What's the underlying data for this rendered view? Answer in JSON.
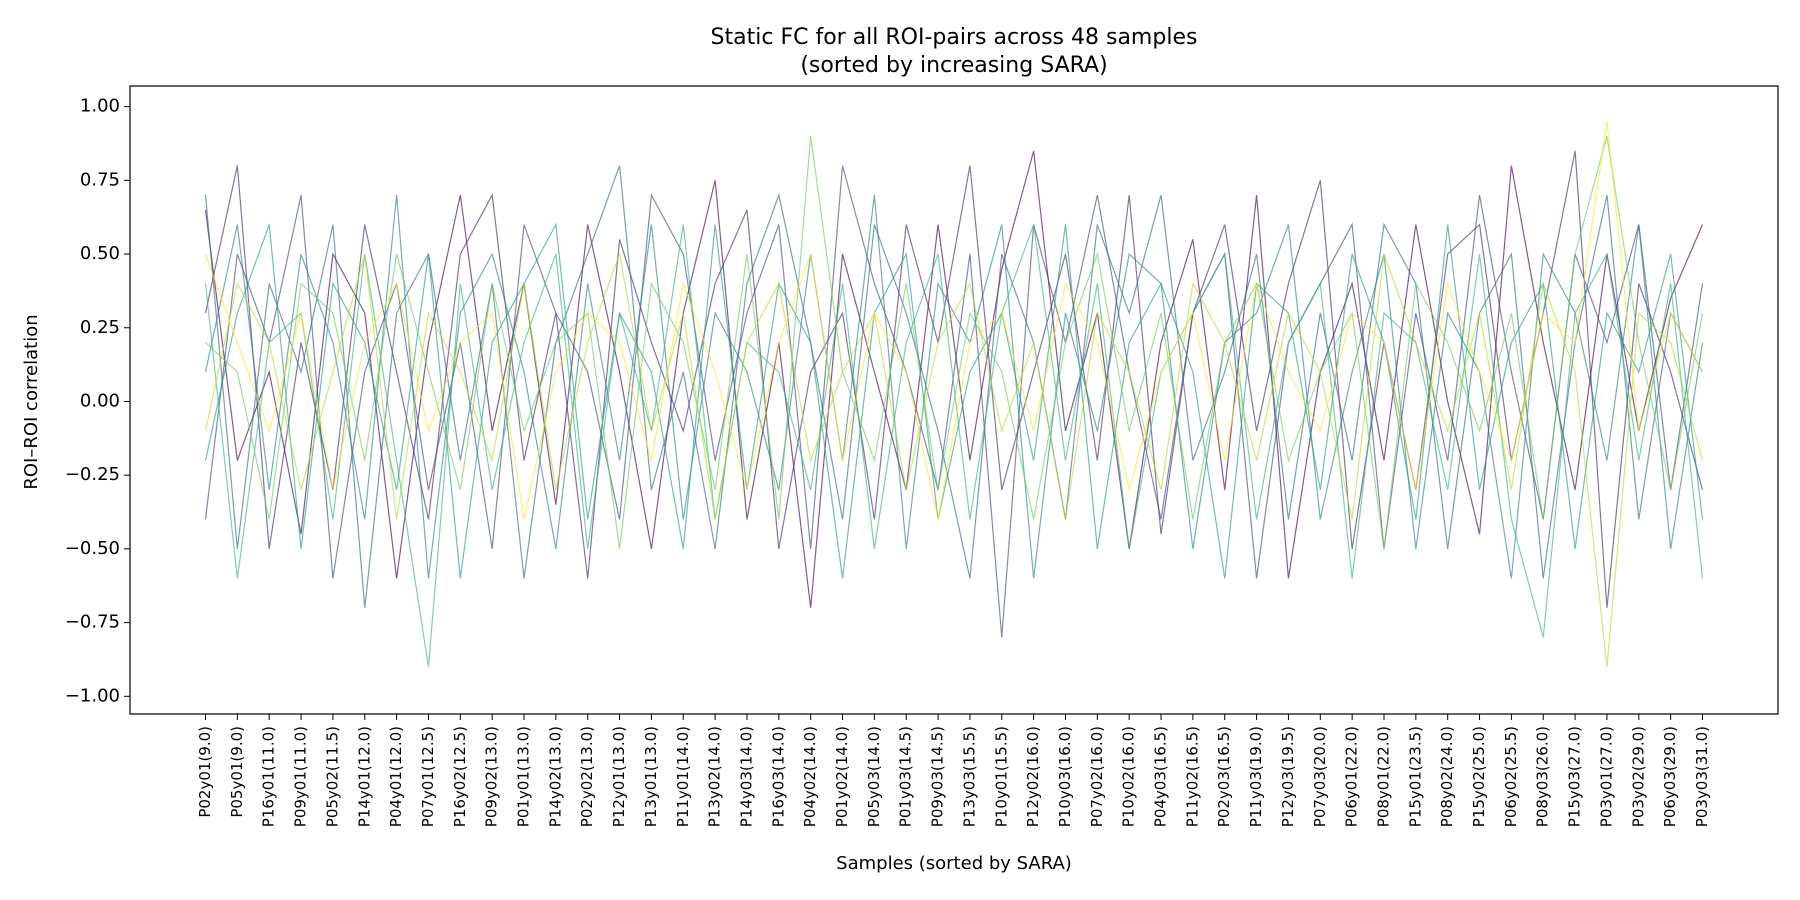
{
  "chart_data": {
    "type": "line",
    "title": [
      "Static FC for all ROI-pairs across 48 samples",
      "(sorted by increasing SARA)"
    ],
    "x_label": "Samples (sorted by SARA)",
    "y_label": "ROI–ROI correlation",
    "categories": [
      "P02y01(9.0)",
      "P05y01(9.0)",
      "P16y01(11.0)",
      "P09y01(11.0)",
      "P05y02(11.5)",
      "P14y01(12.0)",
      "P04y01(12.0)",
      "P07y01(12.5)",
      "P16y02(12.5)",
      "P09y02(13.0)",
      "P01y01(13.0)",
      "P14y02(13.0)",
      "P02y02(13.0)",
      "P12y01(13.0)",
      "P13y01(13.0)",
      "P11y01(14.0)",
      "P13y02(14.0)",
      "P14y03(14.0)",
      "P16y03(14.0)",
      "P04y02(14.0)",
      "P01y02(14.0)",
      "P05y03(14.0)",
      "P01y03(14.5)",
      "P09y03(14.5)",
      "P13y03(15.5)",
      "P10y01(15.5)",
      "P12y02(16.0)",
      "P10y03(16.0)",
      "P07y02(16.0)",
      "P10y02(16.0)",
      "P04y03(16.5)",
      "P11y02(16.5)",
      "P02y03(16.5)",
      "P11y03(19.0)",
      "P12y03(19.5)",
      "P07y03(20.0)",
      "P06y01(22.0)",
      "P08y01(22.0)",
      "P15y01(23.5)",
      "P08y02(24.0)",
      "P15y02(25.0)",
      "P06y02(25.5)",
      "P08y03(26.0)",
      "P15y03(27.0)",
      "P03y01(27.0)",
      "P03y02(29.0)",
      "P06y03(29.0)",
      "P03y03(31.0)"
    ],
    "series": [
      {
        "color": "#440154",
        "values": [
          0.65,
          -0.2,
          0.1,
          -0.45,
          0.5,
          0.3,
          -0.6,
          0.2,
          0.7,
          -0.1,
          0.4,
          -0.35,
          0.6,
          0.1,
          -0.5,
          0.3,
          0.75,
          -0.4,
          0.2,
          -0.7,
          0.5,
          0.1,
          -0.3,
          0.6,
          -0.2,
          0.45,
          0.85,
          -0.1,
          0.3,
          -0.5,
          0.2,
          0.55,
          -0.3,
          0.7,
          -0.6,
          0.1,
          0.4,
          -0.2,
          0.6,
          0.0,
          -0.45,
          0.8,
          0.2,
          -0.3,
          0.5,
          -0.1,
          0.35,
          0.6
        ]
      },
      {
        "color": "#482878",
        "values": [
          0.3,
          0.8,
          -0.5,
          0.2,
          -0.3,
          0.6,
          0.1,
          -0.4,
          0.5,
          0.7,
          -0.2,
          0.3,
          -0.6,
          0.55,
          0.2,
          -0.1,
          0.4,
          0.65,
          -0.5,
          0.1,
          0.3,
          -0.4,
          0.6,
          0.2,
          0.8,
          -0.3,
          0.1,
          0.5,
          -0.2,
          0.7,
          -0.45,
          0.3,
          0.6,
          -0.1,
          0.4,
          0.75,
          -0.5,
          0.2,
          -0.3,
          0.5,
          0.6,
          -0.2,
          0.3,
          0.85,
          -0.7,
          0.4,
          0.1,
          -0.3
        ]
      },
      {
        "color": "#3e4989",
        "values": [
          -0.4,
          0.5,
          0.2,
          0.7,
          -0.6,
          0.1,
          0.4,
          -0.3,
          0.2,
          -0.5,
          0.6,
          0.3,
          0.1,
          -0.4,
          0.7,
          0.5,
          -0.2,
          0.3,
          0.6,
          -0.5,
          0.8,
          0.4,
          0.1,
          -0.3,
          0.5,
          -0.8,
          0.6,
          0.2,
          0.7,
          0.1,
          -0.4,
          0.3,
          0.5,
          -0.6,
          0.2,
          0.4,
          0.6,
          -0.5,
          0.3,
          -0.2,
          0.7,
          0.1,
          -0.4,
          0.5,
          0.2,
          0.6,
          -0.3,
          0.4
        ]
      },
      {
        "color": "#31688e",
        "values": [
          0.7,
          -0.5,
          0.4,
          0.1,
          0.6,
          -0.7,
          0.3,
          0.5,
          -0.2,
          0.4,
          -0.6,
          0.2,
          0.5,
          0.8,
          -0.3,
          0.1,
          -0.5,
          0.4,
          0.7,
          0.2,
          -0.4,
          0.6,
          0.3,
          -0.1,
          -0.6,
          0.5,
          0.2,
          -0.4,
          0.6,
          0.3,
          0.7,
          -0.2,
          0.1,
          0.5,
          -0.4,
          0.3,
          -0.2,
          0.6,
          0.4,
          -0.5,
          0.3,
          0.5,
          -0.6,
          0.2,
          0.7,
          -0.4,
          0.3,
          0.1
        ]
      },
      {
        "color": "#26828e",
        "values": [
          0.1,
          0.6,
          -0.3,
          0.5,
          0.2,
          -0.4,
          0.7,
          -0.6,
          0.3,
          0.5,
          0.1,
          -0.5,
          0.4,
          -0.2,
          0.6,
          -0.4,
          0.3,
          0.1,
          -0.3,
          0.5,
          -0.2,
          0.7,
          -0.5,
          0.4,
          0.2,
          0.6,
          -0.6,
          0.3,
          -0.1,
          0.5,
          0.4,
          -0.5,
          0.2,
          0.3,
          0.6,
          -0.4,
          0.1,
          0.5,
          -0.5,
          0.3,
          0.1,
          -0.6,
          0.5,
          0.3,
          -0.2,
          0.6,
          -0.5,
          0.2
        ]
      },
      {
        "color": "#1f9e89",
        "values": [
          -0.2,
          0.3,
          0.6,
          -0.5,
          0.4,
          0.2,
          -0.3,
          0.5,
          -0.6,
          0.2,
          0.4,
          0.6,
          -0.4,
          0.3,
          0.1,
          -0.5,
          0.6,
          -0.3,
          0.4,
          0.2,
          -0.6,
          0.3,
          0.5,
          -0.4,
          0.1,
          0.3,
          -0.2,
          0.6,
          -0.5,
          0.2,
          0.4,
          0.1,
          -0.6,
          0.4,
          0.3,
          -0.3,
          0.5,
          0.2,
          -0.4,
          0.6,
          -0.3,
          0.2,
          0.4,
          -0.5,
          0.3,
          0.1,
          0.5,
          -0.4
        ]
      },
      {
        "color": "#35b779",
        "values": [
          0.4,
          -0.6,
          0.2,
          0.3,
          -0.4,
          0.5,
          -0.2,
          -0.9,
          0.4,
          -0.3,
          0.2,
          0.5,
          -0.5,
          0.3,
          -0.1,
          0.6,
          -0.4,
          0.2,
          0.1,
          -0.3,
          0.4,
          -0.5,
          0.2,
          0.5,
          -0.4,
          0.3,
          0.6,
          -0.2,
          0.4,
          -0.5,
          0.1,
          0.3,
          0.5,
          -0.4,
          0.2,
          0.4,
          -0.6,
          0.3,
          0.2,
          -0.3,
          0.5,
          -0.4,
          -0.8,
          0.3,
          0.5,
          -0.2,
          0.4,
          -0.6
        ]
      },
      {
        "color": "#6ece58",
        "values": [
          0.2,
          0.1,
          -0.4,
          0.4,
          0.3,
          -0.2,
          0.5,
          0.1,
          -0.3,
          0.4,
          -0.1,
          0.2,
          0.3,
          -0.5,
          0.4,
          0.2,
          -0.3,
          0.5,
          -0.4,
          0.9,
          0.1,
          -0.2,
          0.4,
          -0.3,
          0.3,
          0.1,
          -0.4,
          0.2,
          0.5,
          -0.1,
          0.3,
          -0.4,
          0.2,
          0.4,
          -0.2,
          0.1,
          0.3,
          -0.5,
          0.4,
          0.2,
          -0.1,
          0.3,
          -0.4,
          0.5,
          0.9,
          0.2,
          -0.3,
          0.3
        ]
      },
      {
        "color": "#b5de2b",
        "values": [
          -0.1,
          0.4,
          0.2,
          -0.3,
          0.1,
          0.5,
          -0.4,
          0.3,
          0.1,
          -0.2,
          0.4,
          -0.3,
          0.2,
          0.5,
          -0.1,
          0.3,
          -0.4,
          0.2,
          0.4,
          -0.2,
          0.1,
          0.3,
          -0.3,
          0.2,
          0.4,
          -0.1,
          0.2,
          -0.4,
          0.3,
          0.1,
          -0.3,
          0.4,
          0.2,
          -0.2,
          0.3,
          0.1,
          -0.4,
          0.5,
          0.2,
          -0.1,
          0.3,
          -0.3,
          0.4,
          0.1,
          -0.9,
          0.3,
          0.2,
          -0.2
        ]
      },
      {
        "color": "#fde725",
        "values": [
          0.5,
          0.2,
          -0.1,
          0.3,
          -0.3,
          0.2,
          0.4,
          -0.1,
          0.2,
          0.3,
          -0.4,
          0.1,
          0.3,
          0.2,
          -0.2,
          0.4,
          0.1,
          -0.3,
          0.2,
          0.5,
          -0.2,
          0.3,
          0.1,
          -0.4,
          0.2,
          0.3,
          -0.1,
          0.4,
          0.2,
          -0.3,
          0.1,
          0.3,
          -0.2,
          0.4,
          0.1,
          -0.1,
          0.3,
          0.2,
          -0.3,
          0.4,
          0.1,
          -0.2,
          0.3,
          0.2,
          0.95,
          -0.1,
          0.3,
          0.1
        ]
      }
    ],
    "ylim": [
      -1.06,
      1.07
    ],
    "yticks": [
      {
        "value": 1,
        "label": "1.00"
      },
      {
        "value": 0.75,
        "label": "0.75"
      },
      {
        "value": 0.5,
        "label": "0.50"
      },
      {
        "value": 0.25,
        "label": "0.25"
      },
      {
        "value": 0,
        "label": "0.00"
      },
      {
        "value": -0.25,
        "label": "−0.25"
      },
      {
        "value": -0.5,
        "label": "−0.50"
      },
      {
        "value": -0.75,
        "label": "−0.75"
      },
      {
        "value": -1,
        "label": "−1.00"
      }
    ],
    "grid": false
  }
}
